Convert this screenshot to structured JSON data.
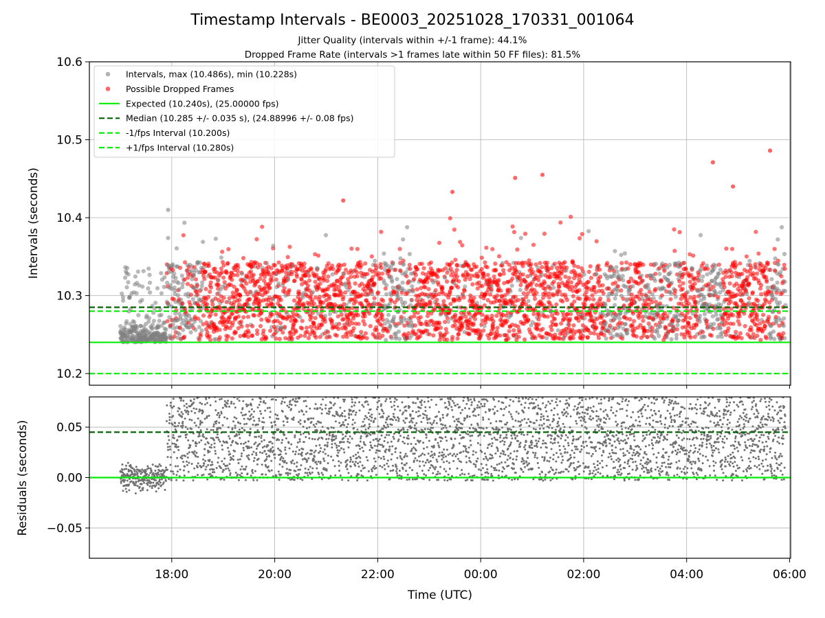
{
  "chart_data": [
    {
      "type": "scatter",
      "title": "Timestamp Intervals - BE0003_20251028_170331_001064",
      "subtitle_lines": [
        "Jitter Quality (intervals within +/-1 frame): 44.1%",
        "Dropped Frame Rate (intervals >1 frames late within 50 FF files): 81.5%"
      ],
      "ylabel": "Intervals (seconds)",
      "xlim_hours": [
        16.4,
        30.02
      ],
      "ylim": [
        10.185,
        10.6
      ],
      "yticks": [
        10.2,
        10.3,
        10.4,
        10.5,
        10.6
      ],
      "ytick_labels": [
        "10.2",
        "10.3",
        "10.4",
        "10.5",
        "10.6"
      ],
      "xtick_hours": [
        18,
        20,
        22,
        24,
        26,
        28,
        30
      ],
      "grid": true,
      "legend_position": "upper-left",
      "series": [
        {
          "name": "Intervals, max (10.486s), min (10.228s)",
          "kind": "points",
          "color": "#808080",
          "alpha": 0.55,
          "approx_count": 1300,
          "max": 10.486,
          "min": 10.228
        },
        {
          "name": "Possible Dropped Frames",
          "kind": "points",
          "color": "#ff0000",
          "alpha": 0.55,
          "approx_count": 2800
        },
        {
          "name": "Expected (10.240s), (25.00000 fps)",
          "kind": "hline",
          "y": 10.24,
          "color": "#00ee00",
          "dash": "solid"
        },
        {
          "name": "Median (10.285 +/- 0.035 s), (24.88996 +/- 0.08 fps)",
          "kind": "hline",
          "y": 10.285,
          "color": "#006400",
          "dash": "dashed"
        },
        {
          "name": "-1/fps Interval (10.200s)",
          "kind": "hline",
          "y": 10.2,
          "color": "#00ee00",
          "dash": "dashed"
        },
        {
          "name": "+1/fps Interval (10.280s)",
          "kind": "hline",
          "y": 10.28,
          "color": "#00ee00",
          "dash": "dashed"
        }
      ],
      "notable_points": [
        {
          "x_hours": 29.62,
          "y": 10.486
        },
        {
          "x_hours": 28.51,
          "y": 10.471
        },
        {
          "x_hours": 25.2,
          "y": 10.455
        },
        {
          "x_hours": 24.67,
          "y": 10.451
        },
        {
          "x_hours": 28.9,
          "y": 10.44
        },
        {
          "x_hours": 23.45,
          "y": 10.433
        },
        {
          "x_hours": 17.93,
          "y": 10.41
        },
        {
          "x_hours": 21.33,
          "y": 10.422
        }
      ]
    },
    {
      "type": "scatter",
      "ylabel": "Residuals (seconds)",
      "xlabel": "Time (UTC)",
      "xlim_hours": [
        16.4,
        30.02
      ],
      "ylim": [
        -0.08,
        0.08
      ],
      "yticks": [
        -0.05,
        0.0,
        0.05
      ],
      "ytick_labels": [
        "−0.05",
        "0.00",
        "0.05"
      ],
      "xtick_hours": [
        18,
        20,
        22,
        24,
        26,
        28,
        30
      ],
      "xtick_labels": [
        "18:00",
        "20:00",
        "22:00",
        "00:00",
        "02:00",
        "04:00",
        "06:00"
      ],
      "grid": true,
      "series": [
        {
          "kind": "points",
          "color": "#808080",
          "approx_count": 3800
        },
        {
          "kind": "hline",
          "y": 0.0,
          "color": "#00ee00",
          "dash": "solid"
        },
        {
          "kind": "hline",
          "y": 0.045,
          "color": "#006400",
          "dash": "dashed"
        }
      ]
    }
  ]
}
